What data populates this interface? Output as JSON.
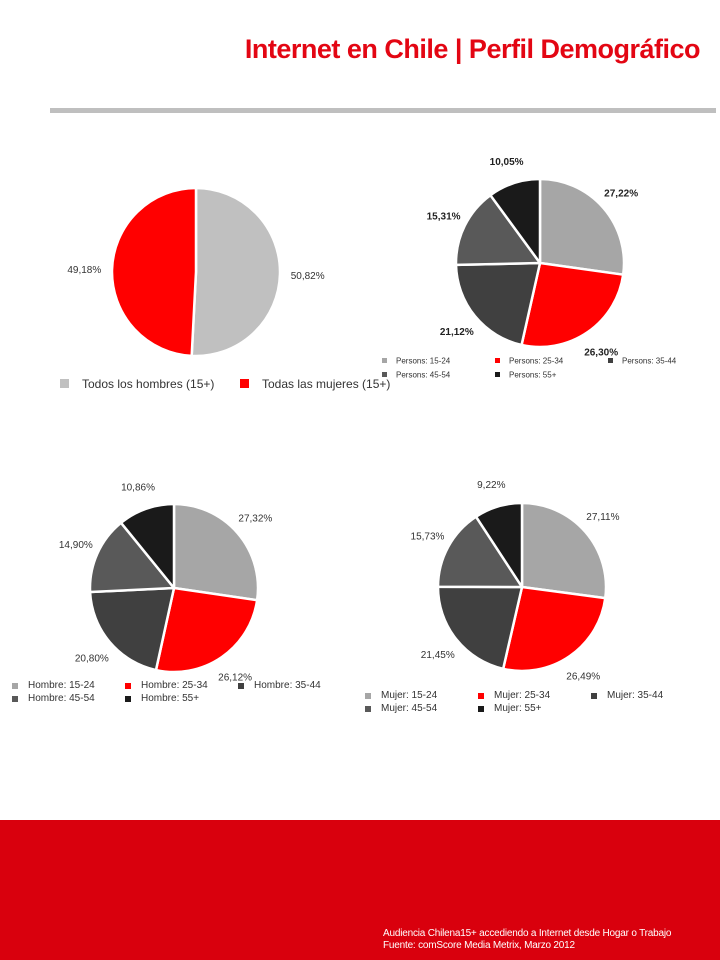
{
  "page": {
    "title": "Internet en Chile | Perfil Demográfico",
    "footer_line1": "Audiencia Chilena15+ accediendo a Internet desde Hogar o Trabajo",
    "footer_line2": "Fuente:  comScore Media Metrix, Marzo 2012",
    "colors": {
      "accent": "#e30613",
      "footer": "#d9000d",
      "rule": "#bfbfbf"
    }
  },
  "chart_data": [
    {
      "type": "pie",
      "id": "genero",
      "slices": [
        {
          "label": "Todos los hombres (15+)",
          "value": 50.82,
          "display": "50,82%",
          "color": "#c0c0c0"
        },
        {
          "label": "Todas las mujeres (15+)",
          "value": 49.18,
          "display": "49,18%",
          "color": "#ff0000"
        }
      ],
      "legend": "bottom"
    },
    {
      "type": "pie",
      "id": "personas",
      "slices": [
        {
          "label": "Persons: 15-24",
          "value": 27.22,
          "display": "27,22%",
          "color": "#a6a6a6"
        },
        {
          "label": "Persons: 25-34",
          "value": 26.3,
          "display": "26,30%",
          "color": "#ff0000"
        },
        {
          "label": "Persons: 35-44",
          "value": 21.12,
          "display": "21,12%",
          "color": "#404040"
        },
        {
          "label": "Persons: 45-54",
          "value": 15.31,
          "display": "15,31%",
          "color": "#595959"
        },
        {
          "label": "Persons: 55+",
          "value": 10.05,
          "display": "10,05%",
          "color": "#1a1a1a"
        }
      ],
      "legend": "bottom"
    },
    {
      "type": "pie",
      "id": "hombres",
      "slices": [
        {
          "label": "Hombre: 15-24",
          "value": 27.32,
          "display": "27,32%",
          "color": "#a6a6a6"
        },
        {
          "label": "Hombre: 25-34",
          "value": 26.12,
          "display": "26,12%",
          "color": "#ff0000"
        },
        {
          "label": "Hombre: 35-44",
          "value": 20.8,
          "display": "20,80%",
          "color": "#404040"
        },
        {
          "label": "Hombre: 45-54",
          "value": 14.9,
          "display": "14,90%",
          "color": "#595959"
        },
        {
          "label": "Hombre: 55+",
          "value": 10.86,
          "display": "10,86%",
          "color": "#1a1a1a"
        }
      ],
      "legend": "bottom"
    },
    {
      "type": "pie",
      "id": "mujeres",
      "slices": [
        {
          "label": "Mujer: 15-24",
          "value": 27.11,
          "display": "27,11%",
          "color": "#a6a6a6"
        },
        {
          "label": "Mujer: 25-34",
          "value": 26.49,
          "display": "26,49%",
          "color": "#ff0000"
        },
        {
          "label": "Mujer: 35-44",
          "value": 21.45,
          "display": "21,45%",
          "color": "#404040"
        },
        {
          "label": "Mujer: 45-54",
          "value": 15.73,
          "display": "15,73%",
          "color": "#595959"
        },
        {
          "label": "Mujer: 55+",
          "value": 9.22,
          "display": "9,22%",
          "color": "#1a1a1a"
        }
      ],
      "legend": "bottom"
    }
  ]
}
